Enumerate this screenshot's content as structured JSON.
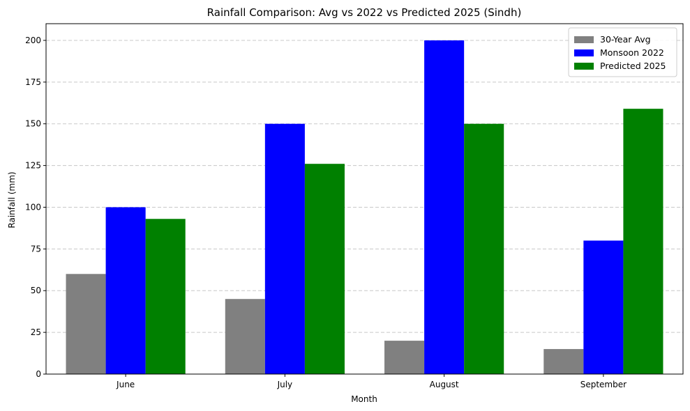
{
  "chart_data": {
    "type": "bar",
    "title": "Rainfall Comparison: Avg vs 2022 vs Predicted 2025 (Sindh)",
    "xlabel": "Month",
    "ylabel": "Rainfall (mm)",
    "categories": [
      "June",
      "July",
      "August",
      "September"
    ],
    "ylim": [
      0,
      210
    ],
    "yticks": [
      0,
      25,
      50,
      75,
      100,
      125,
      150,
      175,
      200
    ],
    "grid": true,
    "grid_axis": "y",
    "legend_position": "top-right",
    "series": [
      {
        "name": "30-Year Avg",
        "color": "#808080",
        "values": [
          60,
          45,
          20,
          15
        ]
      },
      {
        "name": "Monsoon 2022",
        "color": "#0000ff",
        "values": [
          100,
          150,
          200,
          80
        ]
      },
      {
        "name": "Predicted 2025",
        "color": "#008000",
        "values": [
          93,
          126,
          150,
          159
        ]
      }
    ]
  }
}
